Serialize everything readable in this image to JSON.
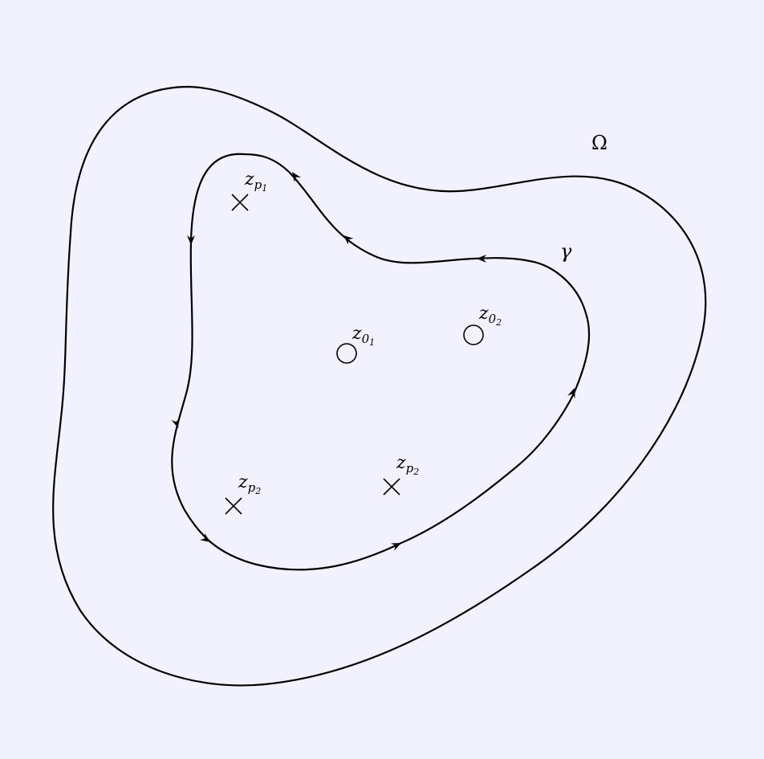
{
  "diagram": {
    "region_label": "Ω",
    "contour_label": "γ",
    "zeros": [
      {
        "base": "z",
        "sub": "0",
        "subsub": "1"
      },
      {
        "base": "z",
        "sub": "0",
        "subsub": "2"
      }
    ],
    "poles": [
      {
        "base": "z",
        "sub": "p",
        "subsub": "1"
      },
      {
        "base": "z",
        "sub": "p",
        "subsub": "2"
      },
      {
        "base": "z",
        "sub": "p",
        "subsub": "2"
      }
    ]
  }
}
